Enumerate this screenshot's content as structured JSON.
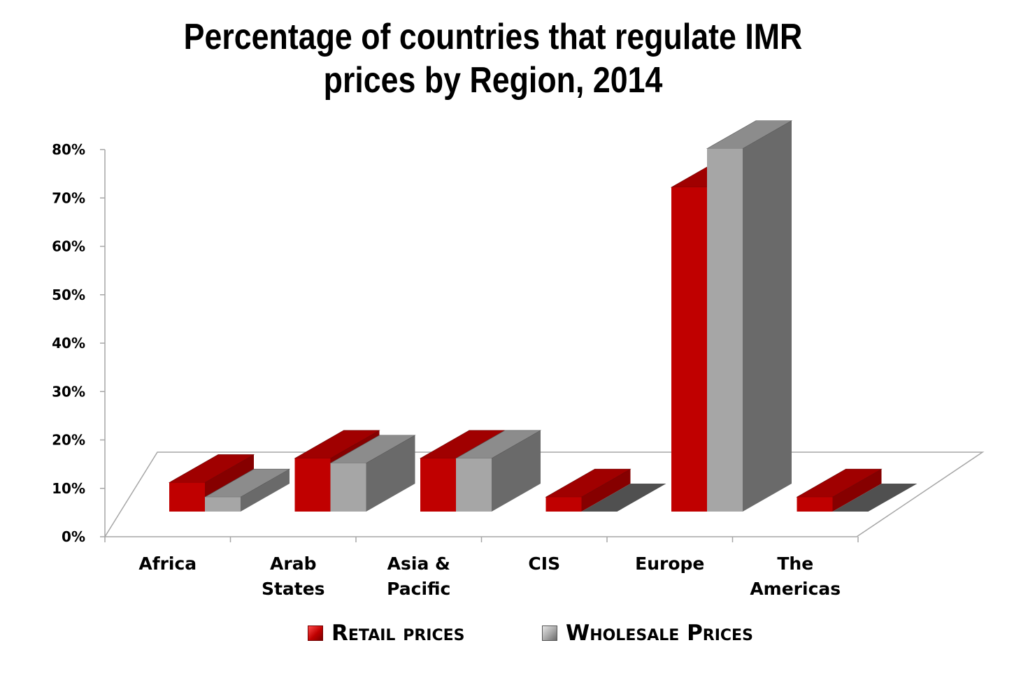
{
  "chart_data": {
    "type": "bar",
    "title": "Percentage of countries that regulate IMR prices by Region, 2014",
    "title_lines": [
      "Percentage of countries that regulate IMR",
      "prices by Region, 2014"
    ],
    "categories": [
      "Africa",
      "Arab States",
      "Asia & Pacific",
      "CIS",
      "Europe",
      "The Americas"
    ],
    "category_lines": [
      [
        "Africa"
      ],
      [
        "Arab",
        "States"
      ],
      [
        "Asia &",
        "Pacific"
      ],
      [
        "CIS"
      ],
      [
        "Europe"
      ],
      [
        "The",
        "Americas"
      ]
    ],
    "series": [
      {
        "name": "Retail prices",
        "values": [
          6,
          11,
          11,
          3,
          67,
          3
        ],
        "color": "#c00000"
      },
      {
        "name": "Wholesale Prices",
        "values": [
          3,
          10,
          11,
          0,
          75,
          0
        ],
        "color": "#a6a6a6"
      }
    ],
    "yticks": [
      "0%",
      "10%",
      "20%",
      "30%",
      "40%",
      "50%",
      "60%",
      "70%",
      "80%"
    ],
    "ylim": [
      0,
      80
    ],
    "grid": false,
    "legend_position": "bottom",
    "projection": "3d"
  }
}
